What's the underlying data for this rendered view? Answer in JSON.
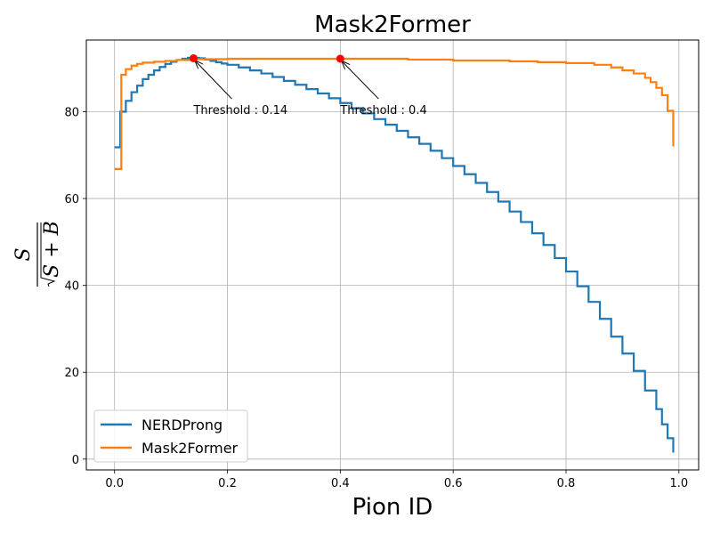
{
  "chart_data": {
    "type": "line",
    "title": "Mask2Former",
    "xlabel": "Pion ID",
    "ylabel": "S/√(S + B)",
    "xlim": [
      -0.05,
      1.035
    ],
    "ylim": [
      -2.5,
      96.5
    ],
    "xticks": [
      0.0,
      0.2,
      0.4,
      0.6,
      0.8,
      1.0
    ],
    "xtick_labels": [
      "0.0",
      "0.2",
      "0.4",
      "0.6",
      "0.8",
      "1.0"
    ],
    "yticks": [
      0,
      20,
      40,
      60,
      80
    ],
    "ytick_labels": [
      "0",
      "20",
      "40",
      "60",
      "80"
    ],
    "grid": true,
    "legend_position": "lower-left",
    "series": [
      {
        "name": "NERDProng",
        "color": "#1f77b4",
        "step": true,
        "points": [
          [
            0.0,
            71.8
          ],
          [
            0.01,
            71.8
          ],
          [
            0.01,
            80.0
          ],
          [
            0.02,
            82.5
          ],
          [
            0.03,
            84.5
          ],
          [
            0.04,
            86.0
          ],
          [
            0.05,
            87.5
          ],
          [
            0.06,
            88.5
          ],
          [
            0.07,
            89.5
          ],
          [
            0.08,
            90.3
          ],
          [
            0.09,
            91.0
          ],
          [
            0.1,
            91.5
          ],
          [
            0.11,
            91.9
          ],
          [
            0.12,
            92.2
          ],
          [
            0.13,
            92.4
          ],
          [
            0.14,
            92.4
          ],
          [
            0.15,
            92.3
          ],
          [
            0.16,
            92.0
          ],
          [
            0.17,
            91.7
          ],
          [
            0.18,
            91.4
          ],
          [
            0.19,
            91.1
          ],
          [
            0.2,
            90.8
          ],
          [
            0.22,
            90.2
          ],
          [
            0.24,
            89.5
          ],
          [
            0.26,
            88.8
          ],
          [
            0.28,
            88.0
          ],
          [
            0.3,
            87.1
          ],
          [
            0.32,
            86.2
          ],
          [
            0.34,
            85.2
          ],
          [
            0.36,
            84.2
          ],
          [
            0.38,
            83.1
          ],
          [
            0.4,
            82.0
          ],
          [
            0.42,
            80.8
          ],
          [
            0.44,
            79.6
          ],
          [
            0.46,
            78.3
          ],
          [
            0.48,
            77.0
          ],
          [
            0.5,
            75.6
          ],
          [
            0.52,
            74.1
          ],
          [
            0.54,
            72.6
          ],
          [
            0.56,
            71.0
          ],
          [
            0.58,
            69.3
          ],
          [
            0.6,
            67.5
          ],
          [
            0.62,
            65.6
          ],
          [
            0.64,
            63.6
          ],
          [
            0.66,
            61.5
          ],
          [
            0.68,
            59.3
          ],
          [
            0.7,
            57.0
          ],
          [
            0.72,
            54.6
          ],
          [
            0.74,
            52.0
          ],
          [
            0.76,
            49.3
          ],
          [
            0.78,
            46.3
          ],
          [
            0.8,
            43.2
          ],
          [
            0.82,
            39.8
          ],
          [
            0.84,
            36.2
          ],
          [
            0.86,
            32.3
          ],
          [
            0.88,
            28.2
          ],
          [
            0.9,
            24.3
          ],
          [
            0.92,
            20.3
          ],
          [
            0.94,
            15.8
          ],
          [
            0.96,
            11.5
          ],
          [
            0.97,
            8.0
          ],
          [
            0.98,
            4.8
          ],
          [
            0.99,
            1.5
          ]
        ]
      },
      {
        "name": "Mask2Former",
        "color": "#ff7f0e",
        "step": true,
        "points": [
          [
            0.0,
            66.8
          ],
          [
            0.012,
            66.8
          ],
          [
            0.012,
            88.5
          ],
          [
            0.02,
            89.8
          ],
          [
            0.03,
            90.6
          ],
          [
            0.04,
            91.0
          ],
          [
            0.05,
            91.3
          ],
          [
            0.07,
            91.5
          ],
          [
            0.09,
            91.7
          ],
          [
            0.11,
            91.9
          ],
          [
            0.14,
            92.1
          ],
          [
            0.2,
            92.2
          ],
          [
            0.3,
            92.2
          ],
          [
            0.4,
            92.2
          ],
          [
            0.5,
            92.2
          ],
          [
            0.52,
            92.0
          ],
          [
            0.6,
            91.8
          ],
          [
            0.7,
            91.6
          ],
          [
            0.75,
            91.4
          ],
          [
            0.8,
            91.2
          ],
          [
            0.85,
            90.8
          ],
          [
            0.88,
            90.2
          ],
          [
            0.9,
            89.5
          ],
          [
            0.92,
            88.8
          ],
          [
            0.94,
            87.8
          ],
          [
            0.95,
            86.8
          ],
          [
            0.96,
            85.5
          ],
          [
            0.97,
            83.8
          ],
          [
            0.98,
            80.2
          ],
          [
            0.99,
            72.0
          ]
        ]
      }
    ],
    "markers": [
      {
        "x": 0.14,
        "y": 92.3,
        "color": "#ff0000",
        "label": "Threshold : 0.14",
        "label_x": 0.14,
        "label_y": 80.5
      },
      {
        "x": 0.4,
        "y": 92.2,
        "color": "#ff0000",
        "label": "Threshold : 0.4",
        "label_x": 0.4,
        "label_y": 80.5
      }
    ]
  }
}
